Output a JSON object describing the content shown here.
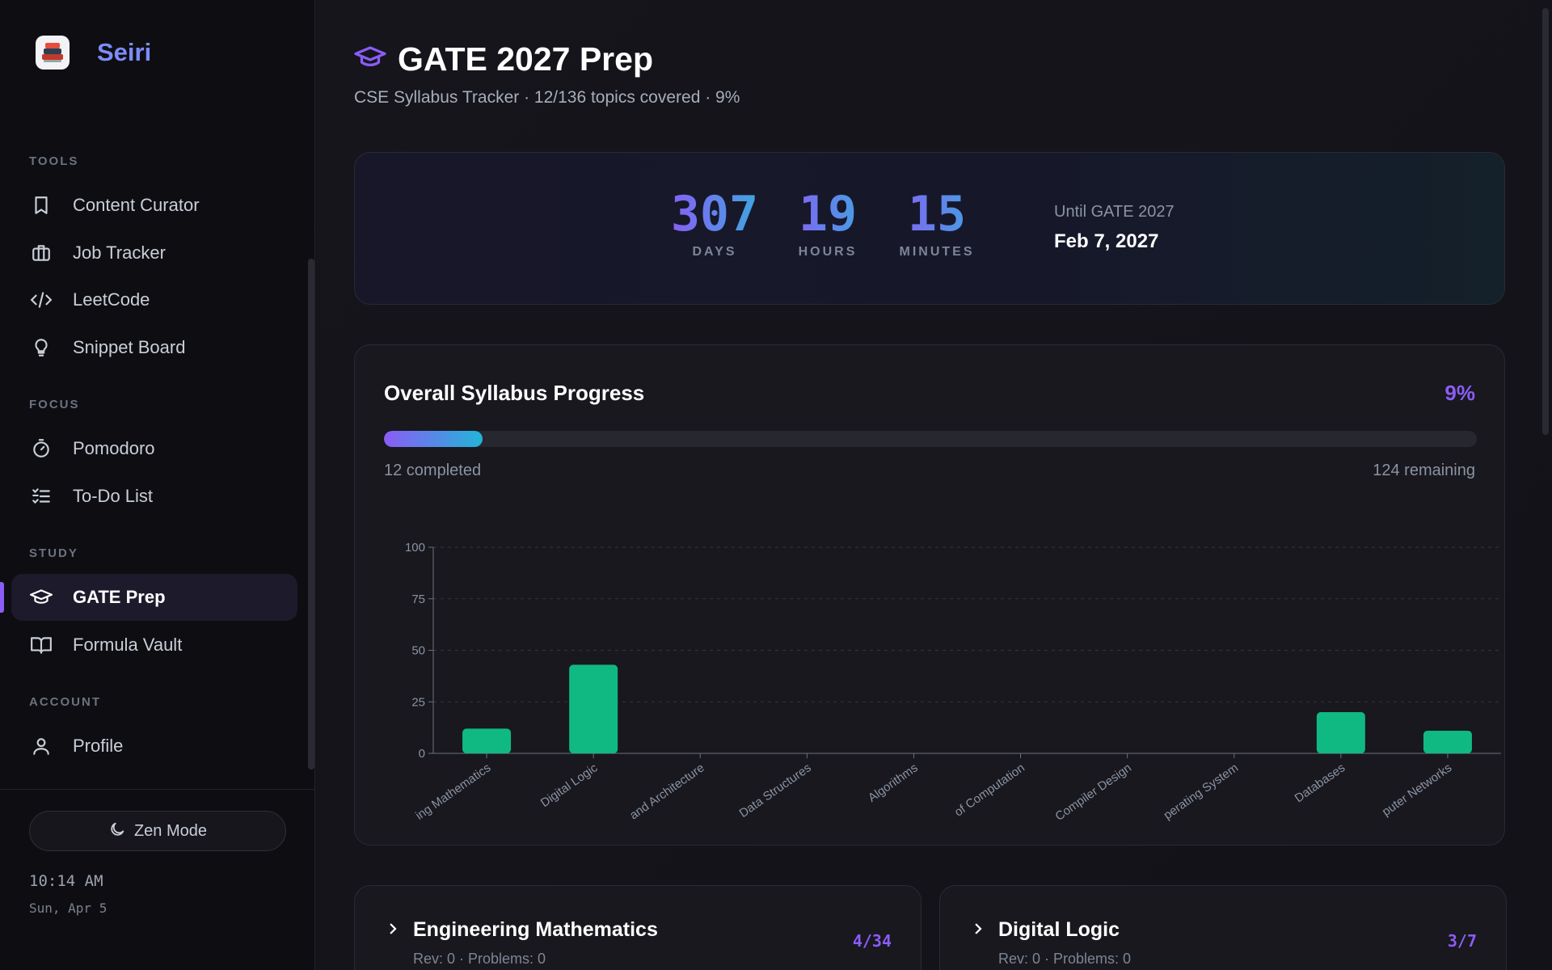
{
  "app": {
    "name": "Seiri"
  },
  "sidebar": {
    "sections": [
      {
        "label": "TOOLS"
      },
      {
        "label": "FOCUS"
      },
      {
        "label": "STUDY"
      },
      {
        "label": "ACCOUNT"
      }
    ],
    "items": [
      {
        "label": "Content Curator",
        "icon": "bookmark-icon"
      },
      {
        "label": "Job Tracker",
        "icon": "briefcase-icon"
      },
      {
        "label": "LeetCode",
        "icon": "code-icon"
      },
      {
        "label": "Snippet Board",
        "icon": "lightbulb-icon"
      },
      {
        "label": "Pomodoro",
        "icon": "timer-icon"
      },
      {
        "label": "To-Do List",
        "icon": "checklist-icon"
      },
      {
        "label": "GATE Prep",
        "icon": "graduation-cap-icon",
        "active": true
      },
      {
        "label": "Formula Vault",
        "icon": "book-open-icon"
      },
      {
        "label": "Profile",
        "icon": "user-icon"
      }
    ],
    "zen_mode_label": "Zen Mode",
    "clock_time": "10:14 AM",
    "clock_date": "Sun, Apr 5"
  },
  "header": {
    "title": "GATE 2027 Prep",
    "subtitle": "CSE Syllabus Tracker · 12/136 topics covered · 9%"
  },
  "countdown": {
    "days": "307",
    "days_label": "DAYS",
    "hours": "19",
    "hours_label": "HOURS",
    "minutes": "15",
    "minutes_label": "MINUTES",
    "until_label": "Until GATE 2027",
    "date": "Feb 7, 2027"
  },
  "progress": {
    "title": "Overall Syllabus Progress",
    "percent_label": "9%",
    "percent": 9,
    "completed_label": "12 completed",
    "remaining_label": "124 remaining"
  },
  "chart_data": {
    "type": "bar",
    "categories": [
      "Engineering Mathematics",
      "Digital Logic",
      "Computer Organization and Architecture",
      "Programming and Data Structures",
      "Algorithms",
      "Theory of Computation",
      "Compiler Design",
      "Operating System",
      "Databases",
      "Computer Networks"
    ],
    "tick_labels": [
      "ing Mathematics",
      "Digital Logic",
      "and Architecture",
      "Data Structures",
      "Algorithms",
      "of Computation",
      "Compiler Design",
      "perating System",
      "Databases",
      "puter Networks"
    ],
    "values": [
      12,
      43,
      0,
      0,
      0,
      0,
      0,
      0,
      20,
      11
    ],
    "ylim": [
      0,
      100
    ],
    "yticks": [
      0,
      25,
      50,
      75,
      100
    ],
    "grid": true,
    "bar_color": "#10b981"
  },
  "subjects": [
    {
      "name": "Engineering Mathematics",
      "meta": "Rev: 0 · Problems: 0",
      "count": "4/34"
    },
    {
      "name": "Digital Logic",
      "meta": "Rev: 0 · Problems: 0",
      "count": "3/7"
    }
  ],
  "colors": {
    "accent": "#8b5cf6",
    "bar": "#10b981",
    "brand": "#7c8cf8"
  }
}
